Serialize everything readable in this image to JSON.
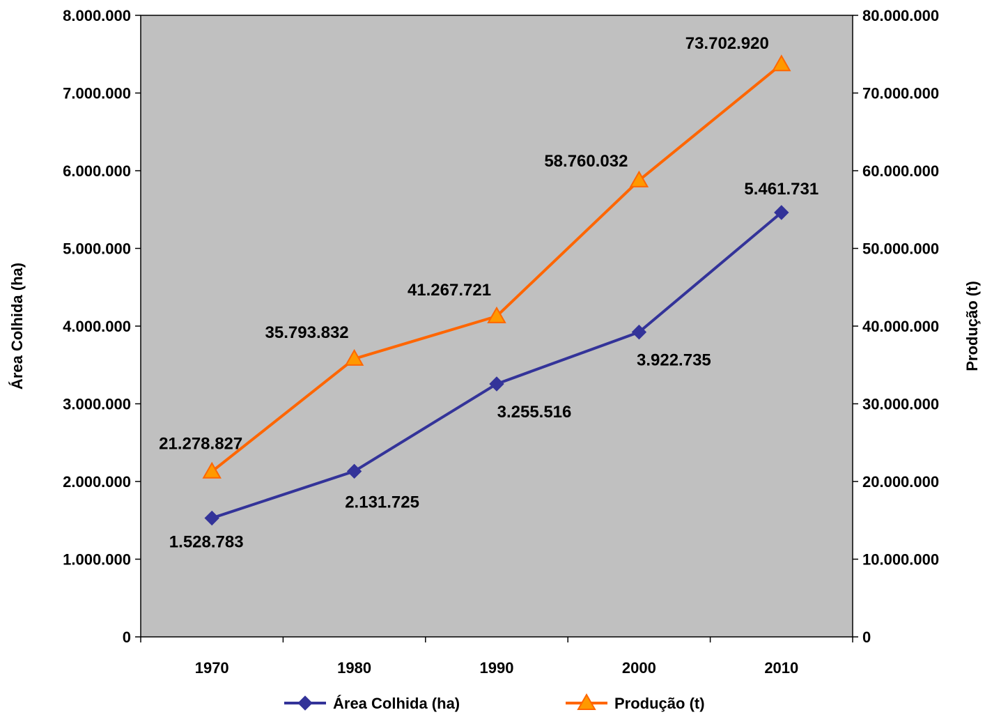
{
  "chart_data": {
    "type": "line",
    "title": "",
    "categories": [
      "1970",
      "1980",
      "1990",
      "2000",
      "2010"
    ],
    "y_left": {
      "label": "Área Colhida (ha)",
      "ylim": [
        0,
        8000000
      ],
      "ticks": [
        "0",
        "1.000.000",
        "2.000.000",
        "3.000.000",
        "4.000.000",
        "5.000.000",
        "6.000.000",
        "7.000.000",
        "8.000.000"
      ]
    },
    "y_right": {
      "label": "Produção (t)",
      "ylim": [
        0,
        80000000
      ],
      "ticks": [
        "0",
        "10.000.000",
        "20.000.000",
        "30.000.000",
        "40.000.000",
        "50.000.000",
        "60.000.000",
        "70.000.000",
        "80.000.000"
      ]
    },
    "grid": false,
    "plot_background": "#c0c0c0",
    "legend_position": "bottom",
    "series": [
      {
        "name": "Área Colhida (ha)",
        "axis": "left",
        "color": "#333399",
        "marker": "diamond",
        "values": [
          1528783,
          2131725,
          3255516,
          3922735,
          5461731
        ],
        "labels": [
          "1.528.783",
          "2.131.725",
          "3.255.516",
          "3.922.735",
          "5.461.731"
        ]
      },
      {
        "name": "Produção (t)",
        "axis": "right",
        "color": "#ff6600",
        "marker": "triangle",
        "values": [
          21278827,
          35793832,
          41267721,
          58760032,
          73702920
        ],
        "labels": [
          "21.278.827",
          "35.793.832",
          "41.267.721",
          "58.760.032",
          "73.702.920"
        ]
      }
    ]
  }
}
